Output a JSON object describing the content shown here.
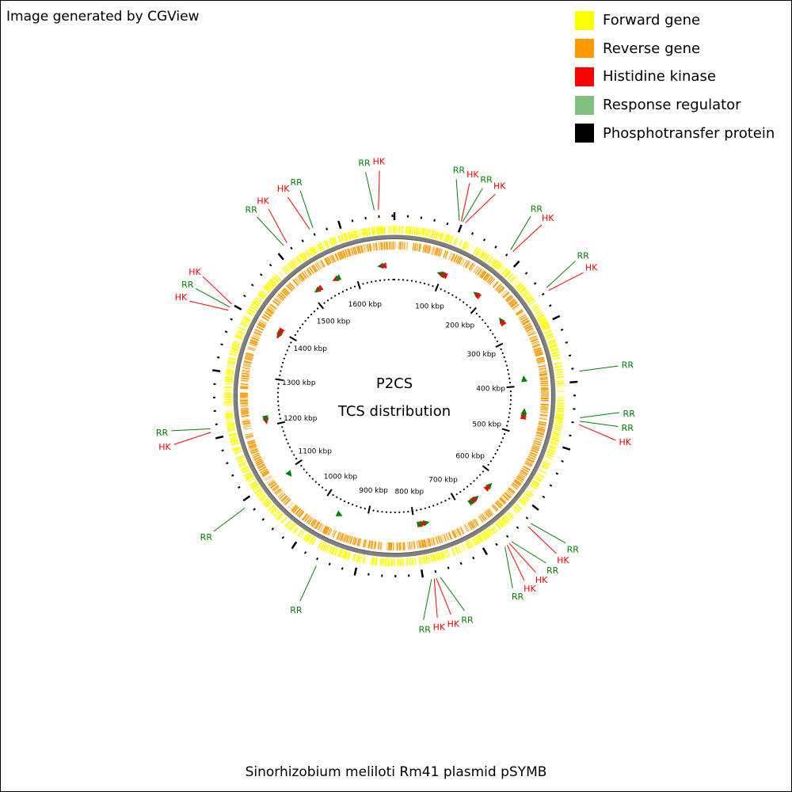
{
  "credit": "Image generated by CGView",
  "footer_title": "Sinorhizobium meliloti Rm41 plasmid pSYMB",
  "center_title": "P2CS",
  "center_subtitle": "TCS distribution",
  "legend": [
    {
      "label": "Forward gene",
      "color": "#ffff00"
    },
    {
      "label": "Reverse gene",
      "color": "#ff9900"
    },
    {
      "label": "Histidine kinase",
      "color": "#ff0000"
    },
    {
      "label": "Response regulator",
      "color": "#7fbf7f"
    },
    {
      "label": "Phosphotransfer protein",
      "color": "#000000"
    }
  ],
  "ring_colors": {
    "forward": "#ffff00",
    "reverse": "#ff9900",
    "backbone": "#808080",
    "hk": "#ff0000",
    "rr": "#008000",
    "tick": "#000000"
  },
  "genome_kbp": 1683,
  "scale_labels": [
    {
      "kbp": 100,
      "label": "100 kbp"
    },
    {
      "kbp": 200,
      "label": "200 kbp"
    },
    {
      "kbp": 300,
      "label": "300 kbp"
    },
    {
      "kbp": 400,
      "label": "400 kbp"
    },
    {
      "kbp": 500,
      "label": "500 kbp"
    },
    {
      "kbp": 600,
      "label": "600 kbp"
    },
    {
      "kbp": 700,
      "label": "700 kbp"
    },
    {
      "kbp": 800,
      "label": "800 kbp"
    },
    {
      "kbp": 900,
      "label": "900 kbp"
    },
    {
      "kbp": 1000,
      "label": "1000 kbp"
    },
    {
      "kbp": 1100,
      "label": "1100 kbp"
    },
    {
      "kbp": 1200,
      "label": "1200 kbp"
    },
    {
      "kbp": 1300,
      "label": "1300 kbp"
    },
    {
      "kbp": 1400,
      "label": "1400 kbp"
    },
    {
      "kbp": 1500,
      "label": "1500 kbp"
    },
    {
      "kbp": 1600,
      "label": "1600 kbp"
    }
  ],
  "features": [
    {
      "type": "RR",
      "kbp": 1654,
      "strand": "reverse",
      "label": "RR"
    },
    {
      "type": "HK",
      "kbp": 1660,
      "strand": "reverse",
      "label": "HK"
    },
    {
      "type": "RR",
      "kbp": 95,
      "strand": "reverse",
      "label": "RR"
    },
    {
      "type": "HK",
      "kbp": 98,
      "strand": "reverse",
      "label": "HK"
    },
    {
      "type": "RR",
      "kbp": 100,
      "strand": "reverse",
      "label": "RR"
    },
    {
      "type": "HK",
      "kbp": 104,
      "strand": "reverse",
      "label": "HK"
    },
    {
      "type": "RR",
      "kbp": 180,
      "strand": "reverse",
      "label": "RR"
    },
    {
      "type": "HK",
      "kbp": 184,
      "strand": "reverse",
      "label": "HK"
    },
    {
      "type": "RR",
      "kbp": 255,
      "strand": "reverse",
      "label": "RR"
    },
    {
      "type": "HK",
      "kbp": 260,
      "strand": "reverse",
      "label": "HK"
    },
    {
      "type": "RR",
      "kbp": 385,
      "strand": "reverse",
      "label": "RR"
    },
    {
      "type": "RR",
      "kbp": 452,
      "strand": "reverse",
      "label": "RR"
    },
    {
      "type": "RR",
      "kbp": 457,
      "strand": "reverse",
      "label": "RR"
    },
    {
      "type": "HK",
      "kbp": 462,
      "strand": "reverse",
      "label": "HK"
    },
    {
      "type": "RR",
      "kbp": 622,
      "strand": "reverse",
      "label": "RR"
    },
    {
      "type": "HK",
      "kbp": 628,
      "strand": "reverse",
      "label": "HK"
    },
    {
      "type": "RR",
      "kbp": 660,
      "strand": "reverse",
      "label": "RR"
    },
    {
      "type": "HK",
      "kbp": 664,
      "strand": "reverse",
      "label": "HK"
    },
    {
      "type": "HK",
      "kbp": 668,
      "strand": "reverse",
      "label": "HK"
    },
    {
      "type": "RR",
      "kbp": 672,
      "strand": "reverse",
      "label": "RR"
    },
    {
      "type": "RR",
      "kbp": 775,
      "strand": "reverse",
      "label": "RR"
    },
    {
      "type": "HK",
      "kbp": 781,
      "strand": "reverse",
      "label": "HK"
    },
    {
      "type": "HK",
      "kbp": 784,
      "strand": "reverse",
      "label": "HK"
    },
    {
      "type": "RR",
      "kbp": 788,
      "strand": "reverse",
      "label": "RR"
    },
    {
      "type": "RR",
      "kbp": 957,
      "strand": "reverse",
      "label": "RR"
    },
    {
      "type": "RR",
      "kbp": 1090,
      "strand": "reverse",
      "label": "RR"
    },
    {
      "type": "HK",
      "kbp": 1210,
      "strand": "reverse",
      "label": "HK"
    },
    {
      "type": "RR",
      "kbp": 1215,
      "strand": "reverse",
      "label": "RR"
    },
    {
      "type": "HK",
      "kbp": 1390,
      "strand": "reverse",
      "label": "HK"
    },
    {
      "type": "RR",
      "kbp": 1395,
      "strand": "reverse",
      "label": "RR"
    },
    {
      "type": "HK",
      "kbp": 1400,
      "strand": "reverse",
      "label": "HK"
    },
    {
      "type": "RR",
      "kbp": 1513,
      "strand": "reverse",
      "label": "RR"
    },
    {
      "type": "HK",
      "kbp": 1519,
      "strand": "reverse",
      "label": "HK"
    },
    {
      "type": "HK",
      "kbp": 1557,
      "strand": "reverse",
      "label": "HK"
    },
    {
      "type": "RR",
      "kbp": 1562,
      "strand": "reverse",
      "label": "RR"
    }
  ]
}
